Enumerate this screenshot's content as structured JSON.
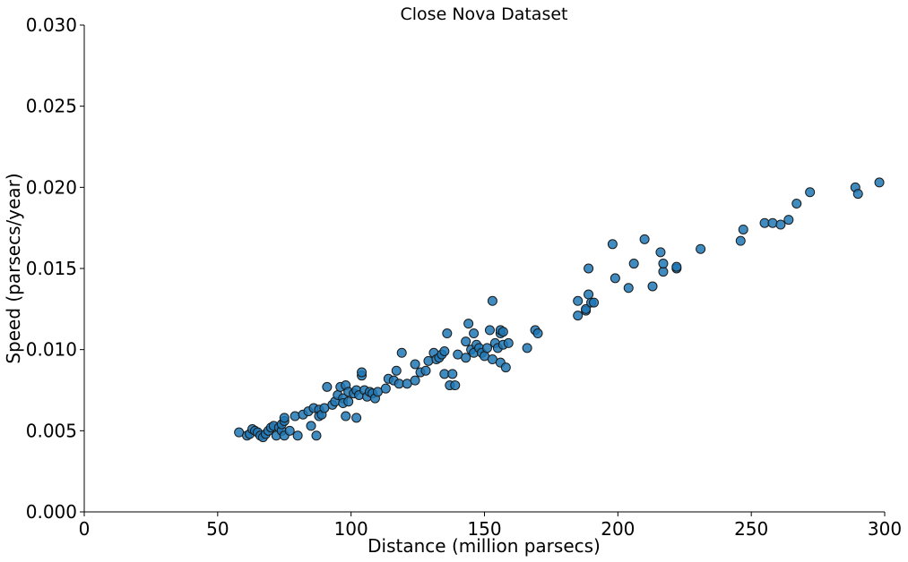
{
  "chart_data": {
    "type": "scatter",
    "title": "Close Nova Dataset",
    "xlabel": "Distance (million parsecs)",
    "ylabel": "Speed (parsecs/year)",
    "xlim": [
      0,
      300
    ],
    "ylim": [
      0,
      0.03
    ],
    "xticks": [
      0,
      50,
      100,
      150,
      200,
      250,
      300
    ],
    "xtick_labels": [
      "0",
      "50",
      "100",
      "150",
      "200",
      "250",
      "300"
    ],
    "yticks": [
      0,
      0.005,
      0.01,
      0.015,
      0.02,
      0.025,
      0.03
    ],
    "ytick_labels": [
      "0.000",
      "0.005",
      "0.010",
      "0.015",
      "0.020",
      "0.025",
      "0.030"
    ],
    "grid": false,
    "marker_color": "#1f77b4",
    "points": [
      [
        58,
        0.0049
      ],
      [
        61,
        0.0047
      ],
      [
        62,
        0.0048
      ],
      [
        63,
        0.0051
      ],
      [
        64,
        0.005
      ],
      [
        65,
        0.0049
      ],
      [
        66,
        0.0047
      ],
      [
        67,
        0.0046
      ],
      [
        68,
        0.0048
      ],
      [
        69,
        0.005
      ],
      [
        70,
        0.0052
      ],
      [
        71,
        0.0053
      ],
      [
        72,
        0.0047
      ],
      [
        73,
        0.0052
      ],
      [
        74,
        0.005
      ],
      [
        74,
        0.0054
      ],
      [
        75,
        0.0056
      ],
      [
        75,
        0.0058
      ],
      [
        75,
        0.0047
      ],
      [
        77,
        0.005
      ],
      [
        79,
        0.0059
      ],
      [
        80,
        0.0047
      ],
      [
        82,
        0.006
      ],
      [
        84,
        0.0062
      ],
      [
        85,
        0.0053
      ],
      [
        86,
        0.0064
      ],
      [
        87,
        0.0047
      ],
      [
        88,
        0.0063
      ],
      [
        88,
        0.0059
      ],
      [
        89,
        0.006
      ],
      [
        90,
        0.0064
      ],
      [
        91,
        0.0077
      ],
      [
        93,
        0.0066
      ],
      [
        94,
        0.0068
      ],
      [
        95,
        0.0072
      ],
      [
        96,
        0.0077
      ],
      [
        97,
        0.007
      ],
      [
        97,
        0.0067
      ],
      [
        98,
        0.0078
      ],
      [
        98,
        0.0059
      ],
      [
        99,
        0.0068
      ],
      [
        99,
        0.0074
      ],
      [
        101,
        0.0073
      ],
      [
        102,
        0.0075
      ],
      [
        102,
        0.0058
      ],
      [
        103,
        0.0072
      ],
      [
        104,
        0.0084
      ],
      [
        104,
        0.0086
      ],
      [
        105,
        0.0075
      ],
      [
        106,
        0.0071
      ],
      [
        107,
        0.0074
      ],
      [
        108,
        0.0073
      ],
      [
        109,
        0.007
      ],
      [
        110,
        0.0074
      ],
      [
        113,
        0.0076
      ],
      [
        114,
        0.0082
      ],
      [
        116,
        0.0081
      ],
      [
        117,
        0.0087
      ],
      [
        118,
        0.0079
      ],
      [
        119,
        0.0098
      ],
      [
        121,
        0.0079
      ],
      [
        124,
        0.0081
      ],
      [
        124,
        0.0091
      ],
      [
        126,
        0.0086
      ],
      [
        128,
        0.0087
      ],
      [
        129,
        0.0093
      ],
      [
        131,
        0.0098
      ],
      [
        132,
        0.0094
      ],
      [
        133,
        0.0095
      ],
      [
        134,
        0.0097
      ],
      [
        135,
        0.0085
      ],
      [
        135,
        0.0099
      ],
      [
        136,
        0.011
      ],
      [
        137,
        0.0078
      ],
      [
        138,
        0.0085
      ],
      [
        139,
        0.0078
      ],
      [
        140,
        0.0097
      ],
      [
        143,
        0.0095
      ],
      [
        143,
        0.0105
      ],
      [
        144,
        0.0116
      ],
      [
        145,
        0.01
      ],
      [
        146,
        0.0098
      ],
      [
        146,
        0.011
      ],
      [
        147,
        0.0103
      ],
      [
        148,
        0.0101
      ],
      [
        149,
        0.0098
      ],
      [
        150,
        0.0096
      ],
      [
        151,
        0.0101
      ],
      [
        152,
        0.0112
      ],
      [
        153,
        0.0094
      ],
      [
        153,
        0.013
      ],
      [
        154,
        0.0104
      ],
      [
        155,
        0.0101
      ],
      [
        156,
        0.011
      ],
      [
        156,
        0.0092
      ],
      [
        156,
        0.0112
      ],
      [
        157,
        0.0103
      ],
      [
        157,
        0.0111
      ],
      [
        158,
        0.0089
      ],
      [
        159,
        0.0104
      ],
      [
        166,
        0.0101
      ],
      [
        169,
        0.0112
      ],
      [
        170,
        0.011
      ],
      [
        185,
        0.0121
      ],
      [
        185,
        0.013
      ],
      [
        188,
        0.0124
      ],
      [
        188,
        0.0125
      ],
      [
        189,
        0.0134
      ],
      [
        189,
        0.015
      ],
      [
        190,
        0.0129
      ],
      [
        191,
        0.0129
      ],
      [
        198,
        0.0165
      ],
      [
        199,
        0.0144
      ],
      [
        204,
        0.0138
      ],
      [
        206,
        0.0153
      ],
      [
        210,
        0.0168
      ],
      [
        213,
        0.0139
      ],
      [
        216,
        0.016
      ],
      [
        217,
        0.0148
      ],
      [
        217,
        0.0153
      ],
      [
        222,
        0.015
      ],
      [
        222,
        0.0151
      ],
      [
        231,
        0.0162
      ],
      [
        246,
        0.0167
      ],
      [
        247,
        0.0174
      ],
      [
        255,
        0.0178
      ],
      [
        258,
        0.0178
      ],
      [
        261,
        0.0177
      ],
      [
        264,
        0.018
      ],
      [
        267,
        0.019
      ],
      [
        272,
        0.0197
      ],
      [
        289,
        0.02
      ],
      [
        290,
        0.0196
      ],
      [
        298,
        0.0203
      ]
    ]
  }
}
